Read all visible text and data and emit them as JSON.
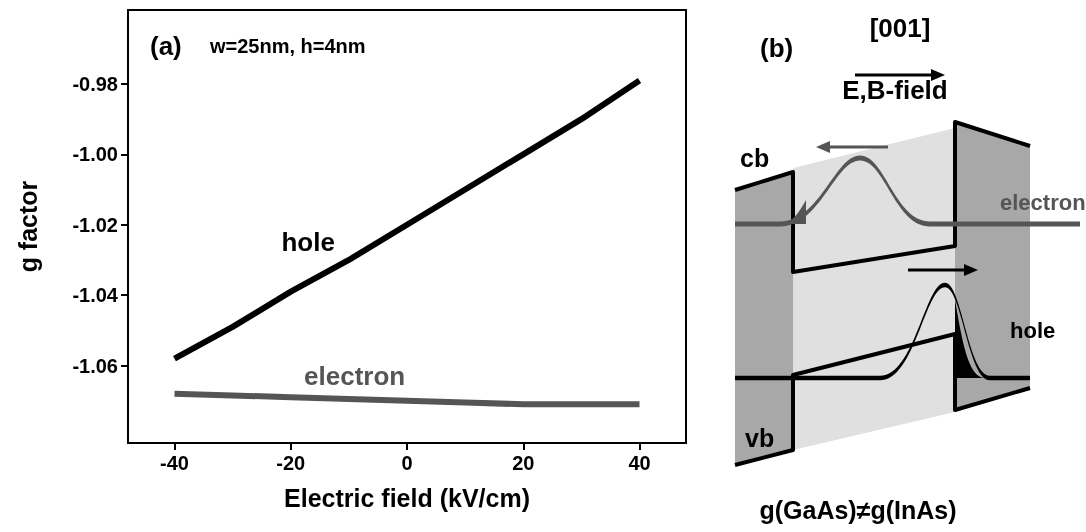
{
  "chart_data": [
    {
      "type": "line",
      "xlabel": "Electric field (kV/cm)",
      "ylabel": "g factor",
      "x": [
        -40,
        -30,
        -20,
        -10,
        0,
        10,
        20,
        30,
        40
      ],
      "series": [
        {
          "name": "hole",
          "color": "#000000",
          "values": [
            -1.058,
            -1.049,
            -1.039,
            -1.03,
            -1.02,
            -1.01,
            -1.0,
            -0.99,
            -0.979
          ]
        },
        {
          "name": "electron",
          "color": "#555555",
          "values": [
            -1.068,
            -1.0685,
            -1.069,
            -1.0695,
            -1.07,
            -1.0705,
            -1.071,
            -1.071,
            -1.071
          ]
        }
      ],
      "xlim": [
        -48,
        48
      ],
      "xticks": [
        -40,
        -20,
        0,
        20,
        40
      ],
      "ylim": [
        -1.082,
        -0.959
      ],
      "yticks": [
        -0.98,
        {
          "value": -1,
          "label": "-1.00"
        },
        -1.02,
        -1.04,
        -1.06
      ],
      "grid": false,
      "legend": false,
      "marker": "none",
      "line_style": "solid",
      "annotations": [
        "(a)",
        "w=25nm, h=4nm"
      ]
    },
    {
      "type": "other",
      "annotations": [
        "(b)",
        "[001]",
        "E,B-field",
        "cb",
        "electron",
        "hole",
        "vb",
        "g(GaAs)≠g(InAs)"
      ]
    }
  ]
}
